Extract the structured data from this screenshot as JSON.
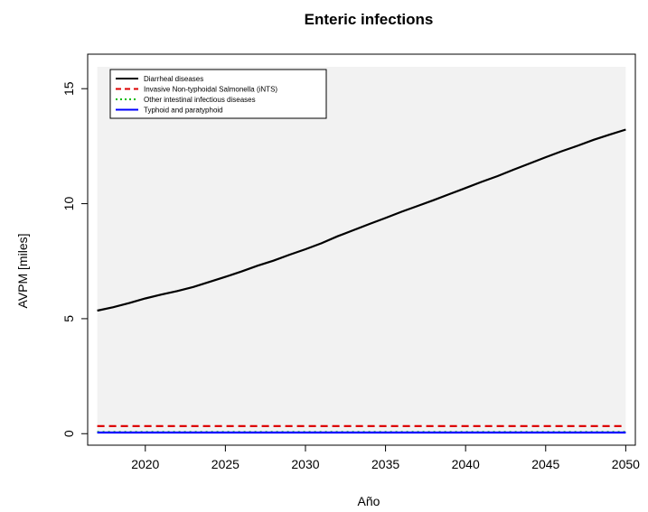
{
  "chart_data": {
    "type": "line",
    "title": "Enteric infections",
    "xlabel": "Año",
    "ylabel": "AVPM [miles]",
    "xlim": [
      2016.4,
      2050.6
    ],
    "ylim": [
      -0.5,
      16.5
    ],
    "x_ticks": [
      2020,
      2025,
      2030,
      2035,
      2040,
      2045,
      2050
    ],
    "y_ticks": [
      0,
      5,
      10,
      15
    ],
    "grid": false,
    "plot_background": "#f2f2f2",
    "legend_position": "top-left",
    "x": [
      2017,
      2018,
      2019,
      2020,
      2021,
      2022,
      2023,
      2024,
      2025,
      2026,
      2027,
      2028,
      2029,
      2030,
      2031,
      2032,
      2033,
      2034,
      2035,
      2036,
      2037,
      2038,
      2039,
      2040,
      2041,
      2042,
      2043,
      2044,
      2045,
      2046,
      2047,
      2048,
      2049,
      2050
    ],
    "series": [
      {
        "name": "Diarrheal diseases",
        "color": "#000000",
        "dash": "solid",
        "values": [
          5.35,
          5.5,
          5.68,
          5.88,
          6.05,
          6.2,
          6.38,
          6.6,
          6.82,
          7.05,
          7.3,
          7.52,
          7.78,
          8.02,
          8.28,
          8.58,
          8.85,
          9.12,
          9.38,
          9.65,
          9.9,
          10.15,
          10.42,
          10.68,
          10.95,
          11.2,
          11.48,
          11.75,
          12.02,
          12.28,
          12.52,
          12.78,
          13.0,
          13.22
        ]
      },
      {
        "name": "Invasive Non-typhoidal Salmonella (iNTS)",
        "color": "#dd0000",
        "dash": "dashed",
        "values": [
          0.33,
          0.33,
          0.33,
          0.33,
          0.33,
          0.33,
          0.33,
          0.33,
          0.33,
          0.33,
          0.33,
          0.33,
          0.33,
          0.33,
          0.33,
          0.33,
          0.33,
          0.33,
          0.33,
          0.33,
          0.33,
          0.33,
          0.33,
          0.33,
          0.33,
          0.33,
          0.33,
          0.33,
          0.33,
          0.33,
          0.33,
          0.33,
          0.33,
          0.33
        ]
      },
      {
        "name": "Other intestinal infectious diseases",
        "color": "#00bb00",
        "dash": "dotted",
        "values": [
          0.07,
          0.07,
          0.07,
          0.07,
          0.07,
          0.07,
          0.07,
          0.07,
          0.07,
          0.07,
          0.07,
          0.07,
          0.07,
          0.07,
          0.07,
          0.07,
          0.07,
          0.07,
          0.07,
          0.07,
          0.07,
          0.07,
          0.07,
          0.07,
          0.07,
          0.07,
          0.07,
          0.07,
          0.07,
          0.07,
          0.07,
          0.07,
          0.07,
          0.07
        ]
      },
      {
        "name": "Typhoid and paratyphoid",
        "color": "#0000ff",
        "dash": "solid",
        "values": [
          0.05,
          0.05,
          0.05,
          0.05,
          0.05,
          0.05,
          0.05,
          0.05,
          0.05,
          0.05,
          0.05,
          0.05,
          0.05,
          0.05,
          0.05,
          0.05,
          0.05,
          0.05,
          0.05,
          0.05,
          0.05,
          0.05,
          0.05,
          0.05,
          0.05,
          0.05,
          0.05,
          0.05,
          0.05,
          0.05,
          0.05,
          0.05,
          0.05,
          0.05
        ]
      }
    ]
  }
}
